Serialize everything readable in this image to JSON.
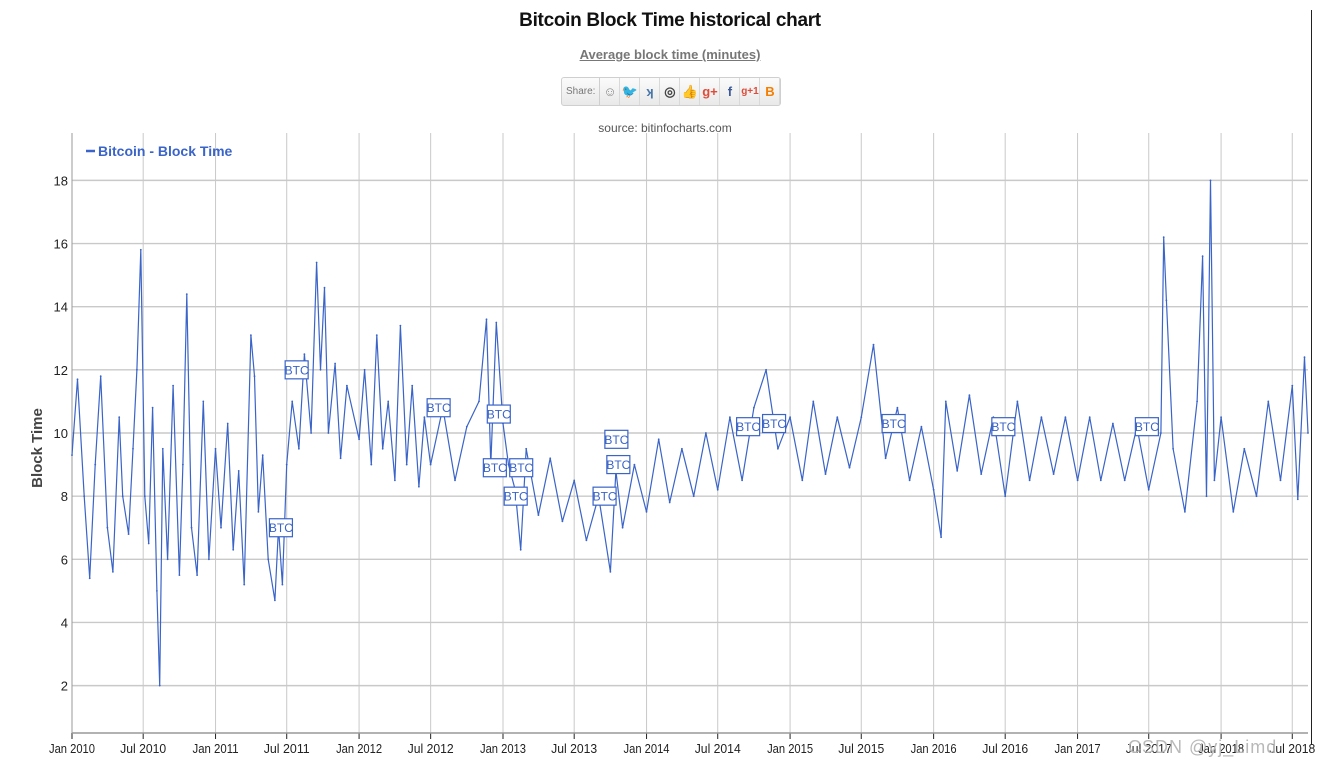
{
  "header": {
    "title": "Bitcoin Block Time historical chart",
    "subtitle": "Average block time (minutes)",
    "share_label": "Share:",
    "share_buttons": [
      {
        "icon": "reddit-icon",
        "glyph": "☺"
      },
      {
        "icon": "twitter-icon",
        "glyph": "🐦"
      },
      {
        "icon": "vk-icon",
        "glyph": "ʞ"
      },
      {
        "icon": "weibo-icon",
        "glyph": "◎"
      },
      {
        "icon": "like-icon",
        "glyph": "👍"
      },
      {
        "icon": "google-plus-icon",
        "glyph": "g+"
      },
      {
        "icon": "facebook-icon",
        "glyph": "f"
      },
      {
        "icon": "google-plus-one-icon",
        "glyph": "g+1"
      },
      {
        "icon": "blogger-icon",
        "glyph": "B"
      }
    ],
    "source": "source: bitinfocharts.com"
  },
  "watermark": "CSDN @yj_Limd",
  "colors": {
    "series": "#3a64c8",
    "grid": "#c9c9c9",
    "axis": "#222222"
  },
  "chart_data": {
    "type": "line",
    "title": "Bitcoin Block Time historical chart",
    "subtitle": "Average block time (minutes)",
    "ylabel": "Block Time",
    "xlabel": "",
    "ylim": [
      0.5,
      19.5
    ],
    "yticks": [
      2,
      4,
      6,
      8,
      10,
      12,
      14,
      16,
      18
    ],
    "xlim": [
      "2010-01-01",
      "2018-08-10"
    ],
    "xticks": [
      "Jan 2010",
      "Jul 2010",
      "Jan 2011",
      "Jul 2011",
      "Jan 2012",
      "Jul 2012",
      "Jan 2013",
      "Jul 2013",
      "Jan 2014",
      "Jul 2014",
      "Jan 2015",
      "Jul 2015",
      "Jan 2016",
      "Jul 2016",
      "Jan 2017",
      "Jul 2017",
      "Jan 2018",
      "Jul 2018"
    ],
    "grid": true,
    "legend_position": "top-left",
    "series": [
      {
        "name": "Bitcoin - Block Time",
        "points": [
          [
            "2010-01-01",
            9.3
          ],
          [
            "2010-01-15",
            11.7
          ],
          [
            "2010-02-01",
            8.0
          ],
          [
            "2010-02-15",
            5.4
          ],
          [
            "2010-03-01",
            9.0
          ],
          [
            "2010-03-15",
            11.8
          ],
          [
            "2010-04-01",
            7.0
          ],
          [
            "2010-04-15",
            5.6
          ],
          [
            "2010-05-01",
            10.5
          ],
          [
            "2010-05-10",
            8.0
          ],
          [
            "2010-05-25",
            6.8
          ],
          [
            "2010-06-05",
            9.5
          ],
          [
            "2010-06-15",
            12.0
          ],
          [
            "2010-06-25",
            15.8
          ],
          [
            "2010-07-05",
            8.0
          ],
          [
            "2010-07-15",
            6.5
          ],
          [
            "2010-07-25",
            10.8
          ],
          [
            "2010-08-05",
            5.0
          ],
          [
            "2010-08-12",
            2.0
          ],
          [
            "2010-08-20",
            9.5
          ],
          [
            "2010-09-01",
            6.0
          ],
          [
            "2010-09-15",
            11.5
          ],
          [
            "2010-10-01",
            5.5
          ],
          [
            "2010-10-10",
            9.0
          ],
          [
            "2010-10-20",
            14.4
          ],
          [
            "2010-11-01",
            7.0
          ],
          [
            "2010-11-15",
            5.5
          ],
          [
            "2010-12-01",
            11.0
          ],
          [
            "2010-12-15",
            6.0
          ],
          [
            "2011-01-01",
            9.5
          ],
          [
            "2011-01-15",
            7.0
          ],
          [
            "2011-02-01",
            10.3
          ],
          [
            "2011-02-15",
            6.3
          ],
          [
            "2011-03-01",
            8.8
          ],
          [
            "2011-03-15",
            5.2
          ],
          [
            "2011-04-01",
            13.1
          ],
          [
            "2011-04-10",
            11.8
          ],
          [
            "2011-04-20",
            7.5
          ],
          [
            "2011-05-01",
            9.3
          ],
          [
            "2011-05-15",
            6.0
          ],
          [
            "2011-06-01",
            4.7
          ],
          [
            "2011-06-10",
            7.0
          ],
          [
            "2011-06-20",
            5.2
          ],
          [
            "2011-07-01",
            9.0
          ],
          [
            "2011-07-15",
            11.0
          ],
          [
            "2011-08-01",
            9.5
          ],
          [
            "2011-08-15",
            12.5
          ],
          [
            "2011-09-01",
            10.0
          ],
          [
            "2011-09-15",
            15.4
          ],
          [
            "2011-09-25",
            12.0
          ],
          [
            "2011-10-05",
            14.6
          ],
          [
            "2011-10-15",
            10.0
          ],
          [
            "2011-11-01",
            12.2
          ],
          [
            "2011-11-15",
            9.2
          ],
          [
            "2011-12-01",
            11.5
          ],
          [
            "2012-01-01",
            9.8
          ],
          [
            "2012-01-15",
            12.0
          ],
          [
            "2012-02-01",
            9.0
          ],
          [
            "2012-02-15",
            13.1
          ],
          [
            "2012-03-01",
            9.5
          ],
          [
            "2012-03-15",
            11.0
          ],
          [
            "2012-04-01",
            8.5
          ],
          [
            "2012-04-15",
            13.4
          ],
          [
            "2012-05-01",
            9.0
          ],
          [
            "2012-05-15",
            11.5
          ],
          [
            "2012-06-01",
            8.3
          ],
          [
            "2012-06-15",
            10.5
          ],
          [
            "2012-07-01",
            9.0
          ],
          [
            "2012-08-01",
            10.8
          ],
          [
            "2012-09-01",
            8.5
          ],
          [
            "2012-10-01",
            10.2
          ],
          [
            "2012-11-01",
            11.0
          ],
          [
            "2012-11-20",
            13.6
          ],
          [
            "2012-12-01",
            9.0
          ],
          [
            "2012-12-15",
            13.5
          ],
          [
            "2013-01-01",
            10.3
          ],
          [
            "2013-01-15",
            9.0
          ],
          [
            "2013-02-01",
            8.2
          ],
          [
            "2013-02-15",
            6.3
          ],
          [
            "2013-03-01",
            9.5
          ],
          [
            "2013-04-01",
            7.4
          ],
          [
            "2013-05-01",
            9.2
          ],
          [
            "2013-06-01",
            7.2
          ],
          [
            "2013-07-01",
            8.5
          ],
          [
            "2013-08-01",
            6.6
          ],
          [
            "2013-09-01",
            8.0
          ],
          [
            "2013-10-01",
            5.6
          ],
          [
            "2013-10-15",
            8.8
          ],
          [
            "2013-11-01",
            7.0
          ],
          [
            "2013-12-01",
            9.0
          ],
          [
            "2014-01-01",
            7.5
          ],
          [
            "2014-02-01",
            9.8
          ],
          [
            "2014-03-01",
            7.8
          ],
          [
            "2014-04-01",
            9.5
          ],
          [
            "2014-05-01",
            8.0
          ],
          [
            "2014-06-01",
            10.0
          ],
          [
            "2014-07-01",
            8.2
          ],
          [
            "2014-08-01",
            10.5
          ],
          [
            "2014-09-01",
            8.5
          ],
          [
            "2014-10-01",
            10.8
          ],
          [
            "2014-11-01",
            12.0
          ],
          [
            "2014-12-01",
            9.5
          ],
          [
            "2015-01-01",
            10.5
          ],
          [
            "2015-02-01",
            8.5
          ],
          [
            "2015-03-01",
            11.0
          ],
          [
            "2015-04-01",
            8.7
          ],
          [
            "2015-05-01",
            10.5
          ],
          [
            "2015-06-01",
            8.9
          ],
          [
            "2015-07-01",
            10.5
          ],
          [
            "2015-08-01",
            12.8
          ],
          [
            "2015-09-01",
            9.2
          ],
          [
            "2015-10-01",
            10.8
          ],
          [
            "2015-11-01",
            8.5
          ],
          [
            "2015-12-01",
            10.2
          ],
          [
            "2016-01-01",
            8.2
          ],
          [
            "2016-01-20",
            6.7
          ],
          [
            "2016-02-01",
            11.0
          ],
          [
            "2016-03-01",
            8.8
          ],
          [
            "2016-04-01",
            11.2
          ],
          [
            "2016-05-01",
            8.7
          ],
          [
            "2016-06-01",
            10.5
          ],
          [
            "2016-07-01",
            8.0
          ],
          [
            "2016-08-01",
            11.0
          ],
          [
            "2016-09-01",
            8.5
          ],
          [
            "2016-10-01",
            10.5
          ],
          [
            "2016-11-01",
            8.7
          ],
          [
            "2016-12-01",
            10.5
          ],
          [
            "2017-01-01",
            8.5
          ],
          [
            "2017-02-01",
            10.5
          ],
          [
            "2017-03-01",
            8.5
          ],
          [
            "2017-04-01",
            10.3
          ],
          [
            "2017-05-01",
            8.5
          ],
          [
            "2017-06-01",
            10.2
          ],
          [
            "2017-07-01",
            8.2
          ],
          [
            "2017-08-01",
            10.0
          ],
          [
            "2017-08-08",
            16.2
          ],
          [
            "2017-08-15",
            14.2
          ],
          [
            "2017-09-01",
            9.5
          ],
          [
            "2017-10-01",
            7.5
          ],
          [
            "2017-11-01",
            11.0
          ],
          [
            "2017-11-15",
            15.6
          ],
          [
            "2017-11-25",
            8.0
          ],
          [
            "2017-12-05",
            18.0
          ],
          [
            "2017-12-15",
            8.5
          ],
          [
            "2018-01-01",
            10.5
          ],
          [
            "2018-02-01",
            7.5
          ],
          [
            "2018-03-01",
            9.5
          ],
          [
            "2018-04-01",
            8.0
          ],
          [
            "2018-05-01",
            11.0
          ],
          [
            "2018-06-01",
            8.5
          ],
          [
            "2018-07-01",
            11.5
          ],
          [
            "2018-07-15",
            7.9
          ],
          [
            "2018-08-01",
            12.4
          ],
          [
            "2018-08-10",
            10.0
          ]
        ]
      }
    ],
    "annotations": [
      {
        "label": "BTC",
        "date": "2011-06-15",
        "value": 7.0
      },
      {
        "label": "BTC",
        "date": "2011-07-25",
        "value": 12.0
      },
      {
        "label": "BTC",
        "date": "2012-07-20",
        "value": 10.8
      },
      {
        "label": "BTC",
        "date": "2012-12-10",
        "value": 8.9
      },
      {
        "label": "BTC",
        "date": "2012-12-20",
        "value": 10.6
      },
      {
        "label": "BTC",
        "date": "2013-02-01",
        "value": 8.0
      },
      {
        "label": "BTC",
        "date": "2013-02-15",
        "value": 8.9
      },
      {
        "label": "BTC",
        "date": "2013-09-15",
        "value": 8.0
      },
      {
        "label": "BTC",
        "date": "2013-10-15",
        "value": 9.8
      },
      {
        "label": "BTC",
        "date": "2013-10-20",
        "value": 9.0
      },
      {
        "label": "BTC",
        "date": "2014-09-15",
        "value": 10.2
      },
      {
        "label": "BTC",
        "date": "2014-11-20",
        "value": 10.3
      },
      {
        "label": "BTC",
        "date": "2015-09-20",
        "value": 10.3
      },
      {
        "label": "BTC",
        "date": "2016-06-25",
        "value": 10.2
      },
      {
        "label": "BTC",
        "date": "2017-06-25",
        "value": 10.2
      }
    ]
  }
}
